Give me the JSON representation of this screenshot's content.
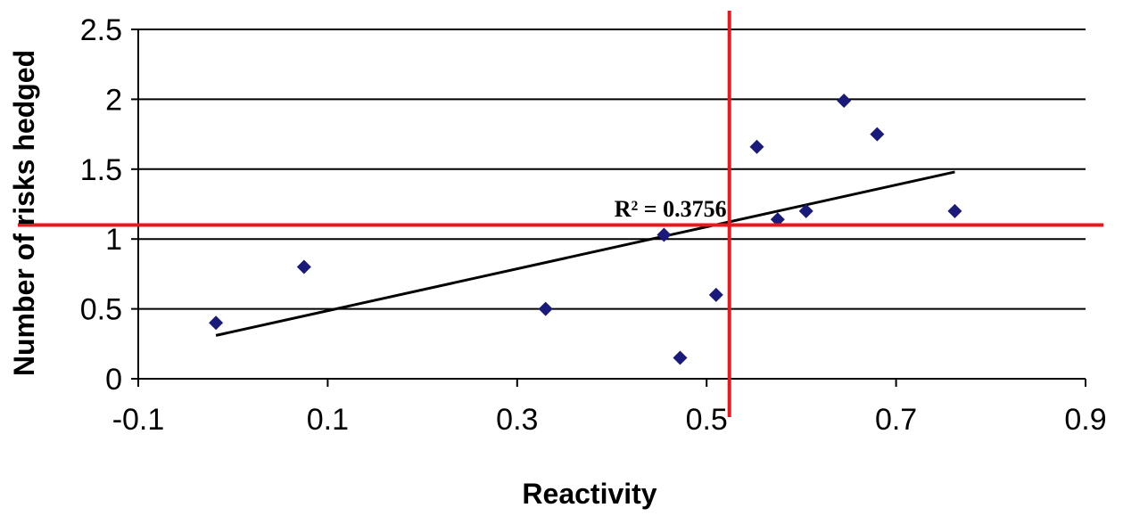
{
  "chart_data": {
    "type": "scatter",
    "title": "",
    "xlabel": "Reactivity",
    "ylabel": "Number of risks hedged",
    "xlim": [
      -0.1,
      0.9
    ],
    "ylim": [
      0,
      2.5
    ],
    "xticks": [
      "-0.1",
      "0.1",
      "0.3",
      "0.5",
      "0.7",
      "0.9"
    ],
    "yticks": [
      "0",
      "0.5",
      "1",
      "1.5",
      "2",
      "2.5"
    ],
    "xtick_values": [
      -0.1,
      0.1,
      0.3,
      0.5,
      0.7,
      0.9
    ],
    "ytick_values": [
      0,
      0.5,
      1,
      1.5,
      2,
      2.5
    ],
    "grid": "horizontal",
    "series": [
      {
        "color": "#1a1a7a",
        "marker": "diamond",
        "x": [
          -0.018,
          0.075,
          0.33,
          0.455,
          0.472,
          0.51,
          0.553,
          0.575,
          0.605,
          0.645,
          0.68,
          0.762
        ],
        "y": [
          0.4,
          0.8,
          0.5,
          1.03,
          0.15,
          0.6,
          1.66,
          1.14,
          1.2,
          1.99,
          1.75,
          1.2
        ]
      }
    ],
    "trendline": {
      "x": [
        -0.018,
        0.762
      ],
      "y": [
        0.31,
        1.48
      ],
      "color": "#000000",
      "label": "R² = 0.3756",
      "label_x": 0.33,
      "label_y": 1.2
    },
    "reference_lines": {
      "color": "#e8191e",
      "vertical_x": 0.524,
      "horizontal_y": 1.1
    }
  }
}
